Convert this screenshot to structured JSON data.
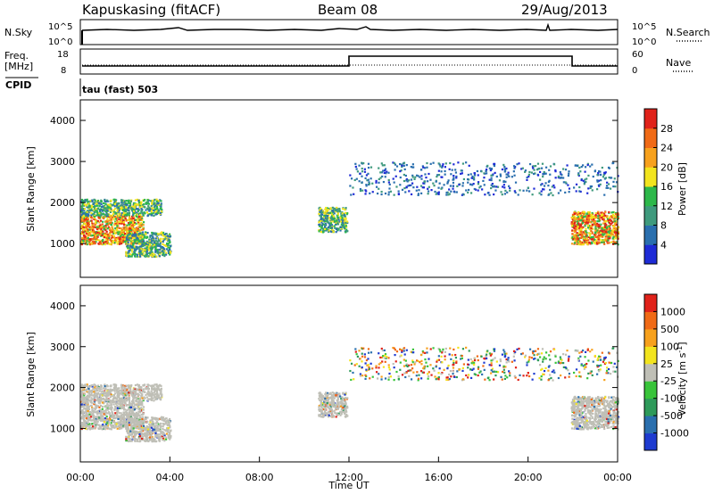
{
  "header": {
    "station": "Kapuskasing (fitACF)",
    "beam": "Beam 08",
    "date": "29/Aug/2013"
  },
  "strip_panels": {
    "nsky_label": "N.Sky",
    "nsky_ticks": [
      "10^5",
      "10^0"
    ],
    "nsearch_label": "N.Search",
    "nsearch_ticks": [
      "10^5",
      "10^0"
    ],
    "freq_label_line1": "Freq.",
    "freq_label_line2": "[MHz]",
    "freq_ticks": [
      "18",
      "8"
    ],
    "nave_label": "Nave",
    "nave_ticks": [
      "60",
      "0"
    ],
    "cpid_label": "CPID",
    "cpid_value": "tau (fast) 503"
  },
  "chart_data": [
    {
      "type": "heatmap",
      "title": "",
      "ylabel": "Slant Range [km]",
      "xlabel": "",
      "ylim": [
        180,
        4500
      ],
      "yticks": [
        "1000",
        "2000",
        "3000",
        "4000"
      ],
      "colorbar_label": "Power [dB]",
      "colorbar_ticks": [
        "4",
        "8",
        "12",
        "16",
        "20",
        "24",
        "28"
      ],
      "colorbar_colors": [
        "#1e2bd6",
        "#2a6fae",
        "#3f9a7d",
        "#2db84a",
        "#f2e41e",
        "#f7a11d",
        "#f06a16",
        "#e0221a"
      ],
      "echo_regions": [
        {
          "t_start": 0.0,
          "t_end": 2.8,
          "r_low": 1000,
          "r_high": 1700,
          "level": "strong"
        },
        {
          "t_start": 0.0,
          "t_end": 3.6,
          "r_low": 1700,
          "r_high": 2100,
          "level": "medium"
        },
        {
          "t_start": 2.0,
          "t_end": 4.0,
          "r_low": 700,
          "r_high": 1300,
          "level": "medium"
        },
        {
          "t_start": 10.6,
          "t_end": 11.9,
          "r_low": 1300,
          "r_high": 1900,
          "level": "medium"
        },
        {
          "t_start": 21.9,
          "t_end": 24.0,
          "r_low": 1000,
          "r_high": 1800,
          "level": "strong"
        },
        {
          "t_start": 12.0,
          "t_end": 24.0,
          "r_low": 2200,
          "r_high": 3000,
          "level": "weak"
        }
      ]
    },
    {
      "type": "heatmap",
      "title": "",
      "ylabel": "Slant Range [km]",
      "xlabel": "Time UT",
      "ylim": [
        180,
        4500
      ],
      "yticks": [
        "1000",
        "2000",
        "3000",
        "4000"
      ],
      "xticks": [
        "00:00",
        "04:00",
        "08:00",
        "12:00",
        "16:00",
        "20:00",
        "00:00"
      ],
      "colorbar_label": "Velocity",
      "colorbar_unit": "[m s",
      "colorbar_unit_exp": "-1",
      "colorbar_unit_close": "]",
      "colorbar_ticks": [
        "1000",
        "500",
        "100",
        "25",
        "-25",
        "-100",
        "-500",
        "-1000"
      ],
      "colorbar_colors": [
        "#1e3bd0",
        "#2a6fae",
        "#2e9a5a",
        "#39c43a",
        "#bfbfb6",
        "#f2e41e",
        "#f7a11d",
        "#f06a16",
        "#e0221a"
      ],
      "ground_scatter_color": "#bfbfb6"
    }
  ]
}
